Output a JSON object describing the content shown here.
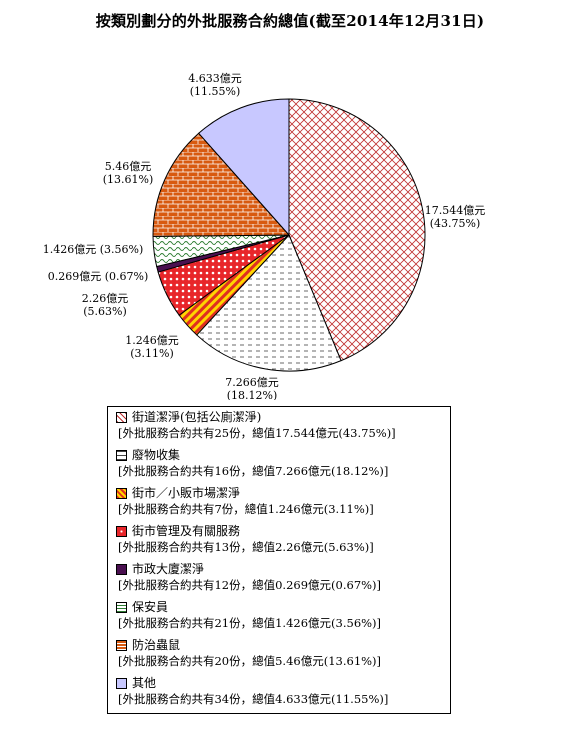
{
  "chart_data": {
    "type": "pie",
    "title": "按類別劃分的外批服務合約總值(截至2014年12月31日)",
    "slices": [
      {
        "name": "街道潔淨(包括公廁潔淨)",
        "value": 17.544,
        "value_label": "17.544億元",
        "pct_label": "(43.75%)",
        "detail": "[外批服務合約共有25份，總值17.544億元(43.75%)]",
        "color": "#d03030",
        "pattern": "crosshatch"
      },
      {
        "name": "廢物收集",
        "value": 7.266,
        "value_label": "7.266億元",
        "pct_label": "(18.12%)",
        "detail": "[外批服務合約共有16份，總值7.266億元(18.12%)]",
        "color": "#555555",
        "pattern": "dashes"
      },
      {
        "name": "街市／小販市場潔淨",
        "value": 1.246,
        "value_label": "1.246億元",
        "pct_label": "(3.11%)",
        "detail": "[外批服務合約共有7份，總值1.246億元(3.11%)]",
        "color": "#ffd500",
        "pattern": "stripes-red"
      },
      {
        "name": "街市管理及有關服務",
        "value": 2.26,
        "value_label": "2.26億元",
        "pct_label": "(5.63%)",
        "detail": "[外批服務合約共有13份，總值2.26億元(5.63%)]",
        "color": "#e8262a",
        "pattern": "dots"
      },
      {
        "name": "市政大廈潔淨",
        "value": 0.269,
        "value_label": "0.269億元",
        "pct_label": "(0.67%)",
        "detail": "[外批服務合約共有12份，總值0.269億元(0.67%)]",
        "color": "#4a1050",
        "pattern": "solid"
      },
      {
        "name": "保安員",
        "value": 1.426,
        "value_label": "1.426億元",
        "pct_label": "(3.56%)",
        "detail": "[外批服務合約共有21份，總值1.426億元(3.56%)]",
        "color": "#2e7d32",
        "pattern": "waves"
      },
      {
        "name": "防治蟲鼠",
        "value": 5.46,
        "value_label": "5.46億元",
        "pct_label": "(13.61%)",
        "detail": "[外批服務合約共有20份，總值5.46億元(13.61%)]",
        "color": "#d85a10",
        "pattern": "bricks"
      },
      {
        "name": "其他",
        "value": 4.633,
        "value_label": "4.633億元",
        "pct_label": "(11.55%)",
        "detail": "[外批服務合約共有34份，總值4.633億元(11.55%)]",
        "color": "#c8c8ff",
        "pattern": "solid"
      }
    ],
    "legend": "bottom"
  }
}
